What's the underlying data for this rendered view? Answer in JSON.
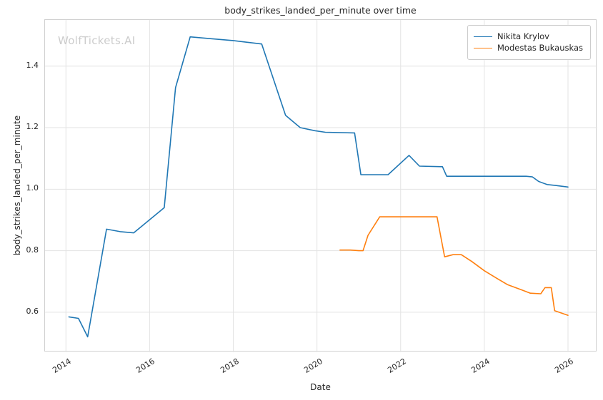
{
  "watermark": "WolfTickets.AI",
  "chart_data": {
    "type": "line",
    "title": "body_strikes_landed_per_minute over time",
    "xlabel": "Date",
    "ylabel": "body_strikes_landed_per_minute",
    "xlim": [
      2013.5,
      2026.7
    ],
    "ylim": [
      0.47,
      1.55
    ],
    "xticks": [
      2014,
      2016,
      2018,
      2020,
      2022,
      2024,
      2026
    ],
    "xtick_labels": [
      "2014",
      "2016",
      "2018",
      "2020",
      "2022",
      "2024",
      "2026"
    ],
    "yticks": [
      0.6,
      0.8,
      1.0,
      1.2,
      1.4
    ],
    "ytick_labels": [
      "0.6",
      "0.8",
      "1.0",
      "1.2",
      "1.4"
    ],
    "grid": true,
    "grid_color": "#e3e3e3",
    "legend_position": "upper right",
    "series": [
      {
        "name": "Nikita Krylov",
        "color": "#1f77b4",
        "points": [
          [
            2014.07,
            0.585
          ],
          [
            2014.3,
            0.58
          ],
          [
            2014.52,
            0.52
          ],
          [
            2014.97,
            0.87
          ],
          [
            2015.3,
            0.862
          ],
          [
            2015.62,
            0.858
          ],
          [
            2016.35,
            0.94
          ],
          [
            2016.62,
            1.33
          ],
          [
            2016.97,
            1.495
          ],
          [
            2017.4,
            1.49
          ],
          [
            2018.0,
            1.483
          ],
          [
            2018.3,
            1.478
          ],
          [
            2018.68,
            1.472
          ],
          [
            2019.25,
            1.24
          ],
          [
            2019.6,
            1.2
          ],
          [
            2019.95,
            1.19
          ],
          [
            2020.2,
            1.185
          ],
          [
            2020.9,
            1.183
          ],
          [
            2021.05,
            1.047
          ],
          [
            2021.7,
            1.047
          ],
          [
            2022.2,
            1.11
          ],
          [
            2022.45,
            1.075
          ],
          [
            2023.0,
            1.073
          ],
          [
            2023.1,
            1.042
          ],
          [
            2024.0,
            1.042
          ],
          [
            2025.0,
            1.042
          ],
          [
            2025.15,
            1.04
          ],
          [
            2025.3,
            1.025
          ],
          [
            2025.5,
            1.015
          ],
          [
            2025.7,
            1.012
          ],
          [
            2026.0,
            1.007
          ]
        ]
      },
      {
        "name": "Modestas Bukauskas",
        "color": "#ff7f0e",
        "points": [
          [
            2020.55,
            0.802
          ],
          [
            2020.8,
            0.802
          ],
          [
            2021.0,
            0.8
          ],
          [
            2021.1,
            0.8
          ],
          [
            2021.22,
            0.85
          ],
          [
            2021.5,
            0.91
          ],
          [
            2022.0,
            0.91
          ],
          [
            2022.87,
            0.91
          ],
          [
            2023.05,
            0.78
          ],
          [
            2023.25,
            0.787
          ],
          [
            2023.45,
            0.787
          ],
          [
            2023.7,
            0.765
          ],
          [
            2024.0,
            0.735
          ],
          [
            2024.3,
            0.71
          ],
          [
            2024.55,
            0.69
          ],
          [
            2024.9,
            0.672
          ],
          [
            2025.1,
            0.662
          ],
          [
            2025.35,
            0.66
          ],
          [
            2025.45,
            0.68
          ],
          [
            2025.6,
            0.68
          ],
          [
            2025.68,
            0.605
          ],
          [
            2026.0,
            0.59
          ]
        ]
      }
    ]
  }
}
